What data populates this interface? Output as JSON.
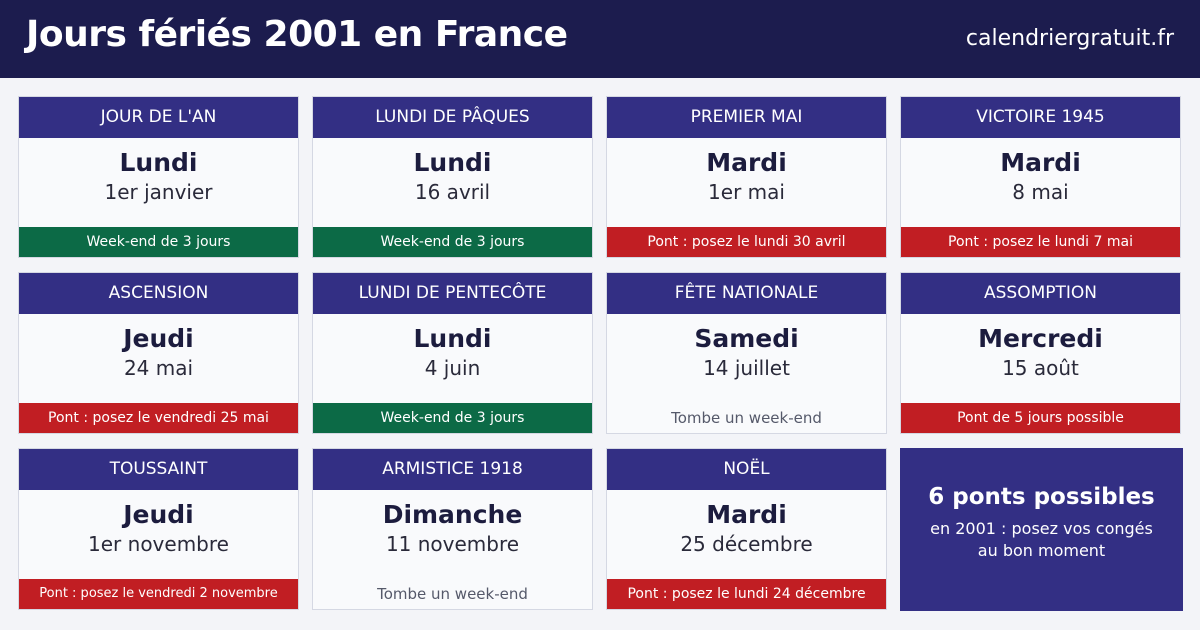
{
  "header": {
    "title": "Jours fériés 2001 en France",
    "site": "calendriergratuit.fr"
  },
  "holidays": [
    {
      "name": "JOUR DE L'AN",
      "day": "Lundi",
      "date": "1er janvier",
      "note": "Week-end de 3 jours",
      "status": "week-end",
      "color": "#0c6a46"
    },
    {
      "name": "LUNDI DE PÂQUES",
      "day": "Lundi",
      "date": "16 avril",
      "note": "Week-end de 3 jours",
      "status": "week-end",
      "color": "#0c6a46"
    },
    {
      "name": "PREMIER MAI",
      "day": "Mardi",
      "date": "1er mai",
      "note": "Pont : posez le lundi 30 avril",
      "status": "pont",
      "color": "#c11e23"
    },
    {
      "name": "VICTOIRE 1945",
      "day": "Mardi",
      "date": "8 mai",
      "note": "Pont : posez le lundi 7 mai",
      "status": "pont",
      "color": "#c11e23"
    },
    {
      "name": "ASCENSION",
      "day": "Jeudi",
      "date": "24 mai",
      "note": "Pont : posez le vendredi 25 mai",
      "status": "pont",
      "color": "#c11e23"
    },
    {
      "name": "LUNDI DE PENTECÔTE",
      "day": "Lundi",
      "date": "4 juin",
      "note": "Week-end de 3 jours",
      "status": "week-end",
      "color": "#0c6a46"
    },
    {
      "name": "FÊTE NATIONALE",
      "day": "Samedi",
      "date": "14 juillet",
      "note": "Tombe un week-end",
      "status": "tombe",
      "color": "#55596a"
    },
    {
      "name": "ASSOMPTION",
      "day": "Mercredi",
      "date": "15 août",
      "note": "Pont de 5 jours possible",
      "status": "pont",
      "color": "#c11e23"
    },
    {
      "name": "TOUSSAINT",
      "day": "Jeudi",
      "date": "1er novembre",
      "note": "Pont : posez le vendredi 2 novembre",
      "status": "pont",
      "color": "#c11e23"
    },
    {
      "name": "ARMISTICE 1918",
      "day": "Dimanche",
      "date": "11 novembre",
      "note": "Tombe un week-end",
      "status": "tombe",
      "color": "#55596a"
    },
    {
      "name": "NOËL",
      "day": "Mardi",
      "date": "25 décembre",
      "note": "Pont : posez le lundi 24 décembre",
      "status": "pont",
      "color": "#c11e23"
    }
  ],
  "summary": {
    "title": "6 ponts possibles",
    "text": "en 2001 : posez vos congés au bon moment"
  },
  "colors": {
    "header_bg": "#1c1c4e",
    "card_header": "#332f84",
    "green": "#0c6a46",
    "red": "#c11e23",
    "page_bg": "#f3f4f8"
  }
}
